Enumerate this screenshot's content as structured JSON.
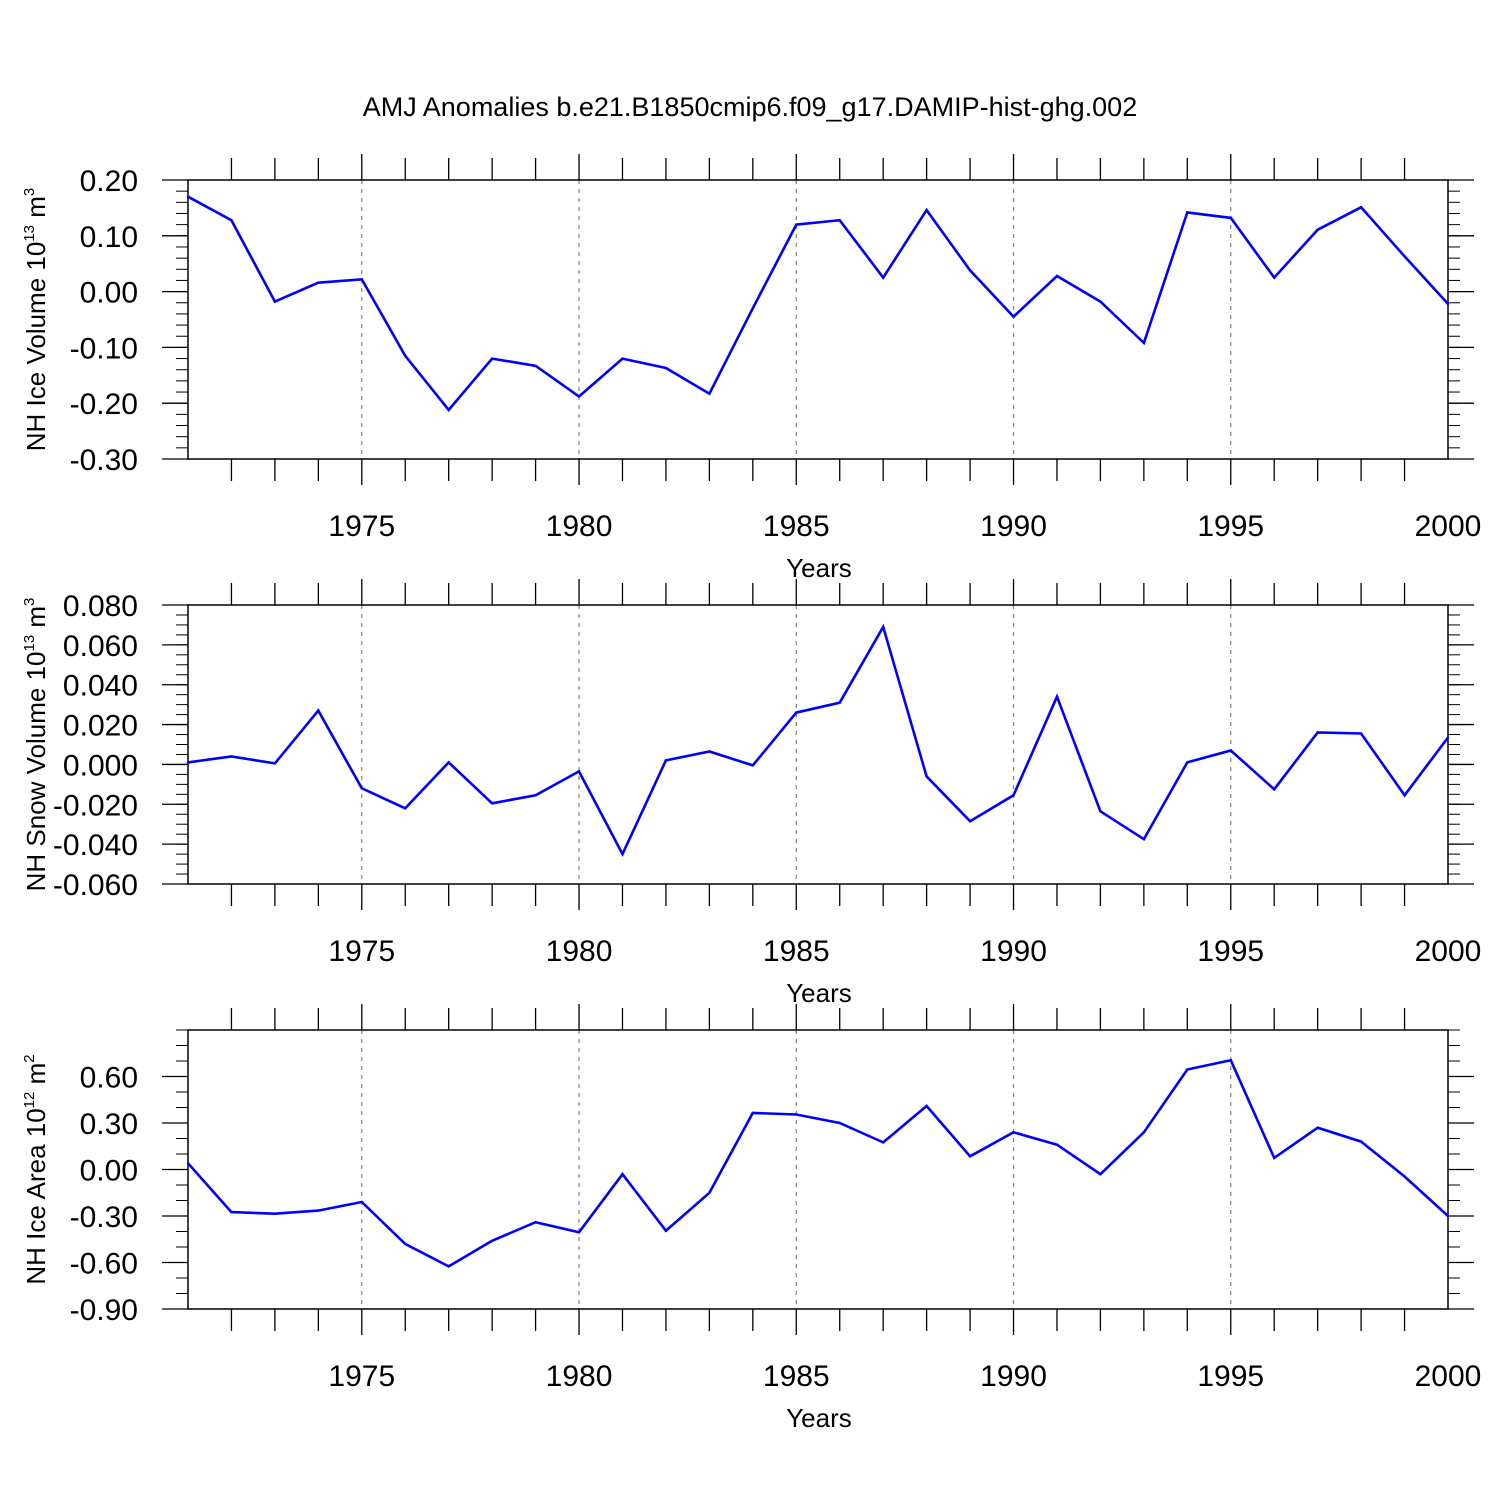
{
  "figure": {
    "title": "AMJ Anomalies b.e21.B1850cmip6.f09_g17.DAMIP-hist-ghg.002"
  },
  "colors": {
    "series": "#0000ff",
    "axis": "#000000",
    "grid": "#808080"
  },
  "chart_data": [
    {
      "type": "line",
      "ylabel": {
        "text": "NH Ice Volume 10",
        "exp": "13",
        "unit": " m",
        "unit_exp": "3"
      },
      "xlabel": "Years",
      "xlim": [
        1971,
        2000
      ],
      "ylim": [
        -0.3,
        0.2
      ],
      "yticks": [
        -0.3,
        -0.2,
        -0.1,
        0.0,
        0.1,
        0.2
      ],
      "ytick_labels": [
        "-0.30",
        "-0.20",
        "-0.10",
        "0.00",
        "0.10",
        "0.20"
      ],
      "yminor": 0.02,
      "xticks": [
        1975,
        1980,
        1985,
        1990,
        1995,
        2000
      ],
      "xtick_labels": [
        "1975",
        "1980",
        "1985",
        "1990",
        "1995",
        "2000"
      ],
      "grid": "vertical dashed at major x ticks",
      "x": [
        1971,
        1972,
        1973,
        1974,
        1975,
        1976,
        1977,
        1978,
        1979,
        1980,
        1981,
        1982,
        1983,
        1984,
        1985,
        1986,
        1987,
        1988,
        1989,
        1990,
        1991,
        1992,
        1993,
        1994,
        1995,
        1996,
        1997,
        1998,
        1999,
        2000
      ],
      "y": [
        0.17,
        0.128,
        -0.018,
        0.016,
        0.022,
        -0.115,
        -0.212,
        -0.12,
        -0.133,
        -0.188,
        -0.12,
        -0.137,
        -0.183,
        -0.03,
        0.12,
        0.128,
        0.025,
        0.146,
        0.038,
        -0.045,
        0.028,
        -0.018,
        -0.092,
        0.142,
        0.132,
        0.025,
        0.111,
        0.151,
        0.063,
        -0.022
      ]
    },
    {
      "type": "line",
      "ylabel": {
        "text": "NH Snow Volume 10",
        "exp": "13",
        "unit": " m",
        "unit_exp": "3"
      },
      "xlabel": "Years",
      "xlim": [
        1971,
        2000
      ],
      "ylim": [
        -0.06,
        0.08
      ],
      "yticks": [
        -0.06,
        -0.04,
        -0.02,
        0.0,
        0.02,
        0.04,
        0.06,
        0.08
      ],
      "ytick_labels": [
        "-0.060",
        "-0.040",
        "-0.020",
        "0.000",
        "0.020",
        "0.040",
        "0.060",
        "0.080"
      ],
      "yminor": 0.005,
      "xticks": [
        1975,
        1980,
        1985,
        1990,
        1995,
        2000
      ],
      "xtick_labels": [
        "1975",
        "1980",
        "1985",
        "1990",
        "1995",
        "2000"
      ],
      "grid": "vertical dashed at major x ticks",
      "x": [
        1971,
        1972,
        1973,
        1974,
        1975,
        1976,
        1977,
        1978,
        1979,
        1980,
        1981,
        1982,
        1983,
        1984,
        1985,
        1986,
        1987,
        1988,
        1989,
        1990,
        1991,
        1992,
        1993,
        1994,
        1995,
        1996,
        1997,
        1998,
        1999,
        2000
      ],
      "y": [
        0.001,
        0.004,
        0.0005,
        0.027,
        -0.012,
        -0.022,
        0.001,
        -0.0195,
        -0.0155,
        -0.0035,
        -0.045,
        0.002,
        0.0065,
        -0.0005,
        0.026,
        0.031,
        0.069,
        -0.006,
        -0.0285,
        -0.0155,
        0.034,
        -0.0235,
        -0.0375,
        0.001,
        0.007,
        -0.0125,
        0.016,
        0.0155,
        -0.0155,
        0.0135
      ]
    },
    {
      "type": "line",
      "ylabel": {
        "text": "NH Ice Area 10",
        "exp": "12",
        "unit": " m",
        "unit_exp": "2"
      },
      "xlabel": "Years",
      "xlim": [
        1971,
        2000
      ],
      "ylim": [
        -0.9,
        0.9
      ],
      "yticks": [
        -0.9,
        -0.6,
        -0.3,
        0.0,
        0.3,
        0.6
      ],
      "ytick_labels": [
        "-0.90",
        "-0.60",
        "-0.30",
        "0.00",
        "0.30",
        "0.60"
      ],
      "yminor": 0.1,
      "xticks": [
        1975,
        1980,
        1985,
        1990,
        1995,
        2000
      ],
      "xtick_labels": [
        "1975",
        "1980",
        "1985",
        "1990",
        "1995",
        "2000"
      ],
      "grid": "vertical dashed at major x ticks",
      "x": [
        1971,
        1972,
        1973,
        1974,
        1975,
        1976,
        1977,
        1978,
        1979,
        1980,
        1981,
        1982,
        1983,
        1984,
        1985,
        1986,
        1987,
        1988,
        1989,
        1990,
        1991,
        1992,
        1993,
        1994,
        1995,
        1996,
        1997,
        1998,
        1999,
        2000
      ],
      "y": [
        0.04,
        -0.275,
        -0.285,
        -0.265,
        -0.21,
        -0.48,
        -0.625,
        -0.46,
        -0.34,
        -0.405,
        -0.03,
        -0.395,
        -0.15,
        0.365,
        0.355,
        0.3,
        0.175,
        0.41,
        0.085,
        0.24,
        0.16,
        -0.03,
        0.24,
        0.645,
        0.705,
        0.075,
        0.27,
        0.18,
        -0.045,
        -0.3
      ]
    }
  ]
}
